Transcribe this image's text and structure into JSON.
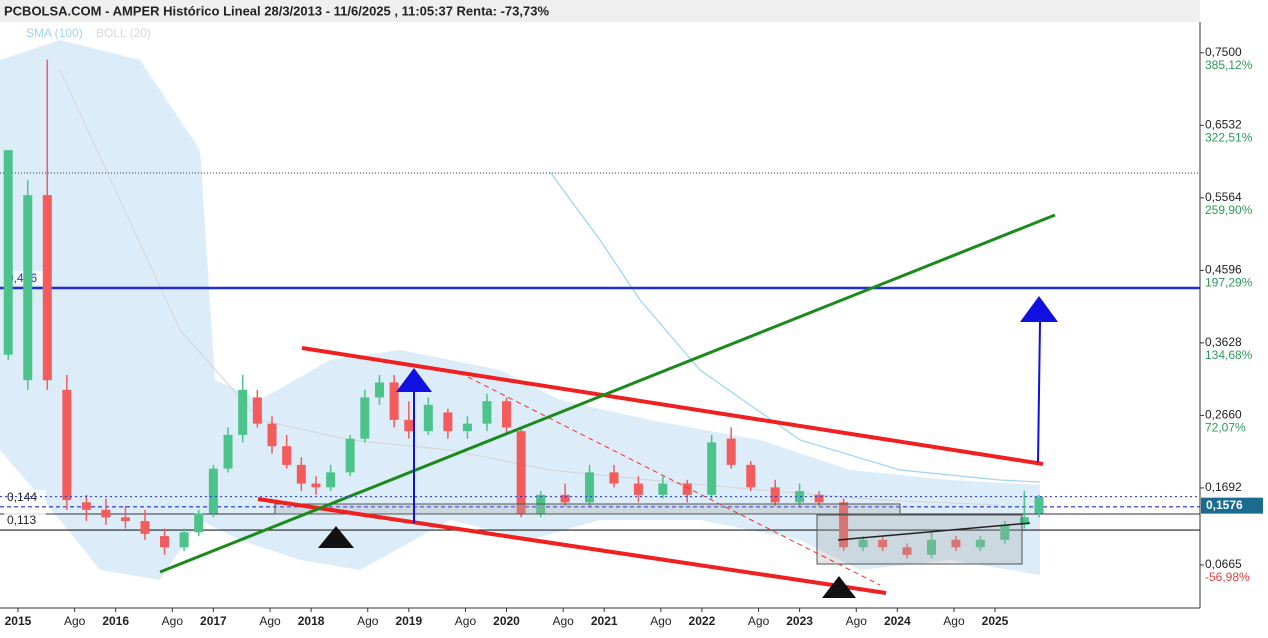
{
  "chart_data": {
    "type": "candlestick",
    "title": "PCBOLSA.COM - AMPER Histórico Lineal 28/3/2013 - 11/6/2025 , 11:05:37 Renta: -73,73%",
    "indicators": [
      {
        "name": "SMA (100)",
        "color": "#9fd3f5"
      },
      {
        "name": "BOLL (20)",
        "color": "#d8d8d8"
      }
    ],
    "xlim": [
      2014.816,
      2027.098
    ],
    "xticks": [
      2015,
      {
        "value": 2015.58,
        "label": "Ago"
      },
      2016,
      {
        "value": 2016.58,
        "label": "Ago"
      },
      2017,
      {
        "value": 2017.58,
        "label": "Ago"
      },
      2018,
      {
        "value": 2018.58,
        "label": "Ago"
      },
      2019,
      {
        "value": 2019.58,
        "label": "Ago"
      },
      2020,
      {
        "value": 2020.58,
        "label": "Ago"
      },
      2021,
      {
        "value": 2021.58,
        "label": "Ago"
      },
      2022,
      {
        "value": 2022.58,
        "label": "Ago"
      },
      2023,
      {
        "value": 2023.58,
        "label": "Ago"
      },
      2024,
      {
        "value": 2024.58,
        "label": "Ago"
      },
      2025
    ],
    "ylim": [
      0.009,
      0.791
    ],
    "yticks": [
      {
        "value": 0.75,
        "label": "0,7500"
      },
      {
        "value": 0.6532,
        "label": "0,6532"
      },
      {
        "value": 0.5564,
        "label": "0,5564"
      },
      {
        "value": 0.4596,
        "label": "0,4596"
      },
      {
        "value": 0.3628,
        "label": "0,3628"
      },
      {
        "value": 0.266,
        "label": "0,2660"
      },
      {
        "value": 0.1692,
        "label": "0,1692"
      },
      {
        "value": 0.0665,
        "label": "0,0665"
      }
    ],
    "y2lim": [
      -94.18,
      411.64
    ],
    "y2ticks": [
      {
        "value": 385.12,
        "label": "385,12%"
      },
      {
        "value": 322.51,
        "label": "322,51%"
      },
      {
        "value": 259.9,
        "label": "259,90%"
      },
      {
        "value": 197.29,
        "label": "197,29%"
      },
      {
        "value": 134.68,
        "label": "134,68%"
      },
      {
        "value": 72.07,
        "label": "72,07%"
      },
      {
        "value": -56.98,
        "label": "-56,98%"
      }
    ],
    "grid": false,
    "up_color": "#4cc38a",
    "down_color": "#f25c5c",
    "levels": [
      {
        "value": 0.436,
        "label": "0,436",
        "color": "#1f2fd6"
      },
      {
        "value": 0.144,
        "label": "0,144",
        "color": "#1f2fd6"
      },
      {
        "value": 0.113,
        "label": "0,113",
        "color": "#222222"
      }
    ],
    "last_price": {
      "value": 0.1576,
      "label": "0,1576"
    },
    "x": [
      2014.9,
      2015.1,
      2015.3,
      2015.5,
      2015.7,
      2015.9,
      2016.1,
      2016.3,
      2016.5,
      2016.7,
      2016.85,
      2017.0,
      2017.15,
      2017.3,
      2017.45,
      2017.6,
      2017.75,
      2017.9,
      2018.05,
      2018.2,
      2018.4,
      2018.55,
      2018.7,
      2018.85,
      2019.0,
      2019.2,
      2019.4,
      2019.6,
      2019.8,
      2020.0,
      2020.15,
      2020.35,
      2020.6,
      2020.85,
      2021.1,
      2021.35,
      2021.6,
      2021.85,
      2022.1,
      2022.3,
      2022.5,
      2022.75,
      2023.0,
      2023.2,
      2023.45,
      2023.65,
      2023.85,
      2024.1,
      2024.35,
      2024.6,
      2024.85,
      2025.1,
      2025.3,
      2025.45
    ],
    "open": [
      0.347,
      0.313,
      0.56,
      0.3,
      0.15,
      0.14,
      0.13,
      0.125,
      0.105,
      0.09,
      0.11,
      0.135,
      0.195,
      0.24,
      0.29,
      0.255,
      0.225,
      0.2,
      0.175,
      0.17,
      0.19,
      0.235,
      0.29,
      0.31,
      0.26,
      0.245,
      0.27,
      0.245,
      0.255,
      0.285,
      0.245,
      0.135,
      0.16,
      0.15,
      0.19,
      0.175,
      0.16,
      0.175,
      0.16,
      0.235,
      0.2,
      0.17,
      0.15,
      0.16,
      0.15,
      0.09,
      0.1,
      0.09,
      0.08,
      0.1,
      0.09,
      0.1,
      0.12,
      0.135
    ],
    "high": [
      0.62,
      0.58,
      0.741,
      0.32,
      0.16,
      0.155,
      0.145,
      0.14,
      0.115,
      0.115,
      0.14,
      0.2,
      0.25,
      0.32,
      0.3,
      0.265,
      0.24,
      0.21,
      0.185,
      0.2,
      0.24,
      0.3,
      0.32,
      0.32,
      0.285,
      0.29,
      0.275,
      0.265,
      0.295,
      0.29,
      0.25,
      0.165,
      0.175,
      0.2,
      0.2,
      0.185,
      0.185,
      0.18,
      0.24,
      0.25,
      0.205,
      0.18,
      0.175,
      0.165,
      0.155,
      0.105,
      0.105,
      0.095,
      0.11,
      0.105,
      0.105,
      0.125,
      0.165,
      0.16
    ],
    "low": [
      0.34,
      0.3,
      0.3,
      0.14,
      0.125,
      0.12,
      0.115,
      0.1,
      0.08,
      0.085,
      0.105,
      0.13,
      0.19,
      0.23,
      0.25,
      0.215,
      0.195,
      0.165,
      0.16,
      0.165,
      0.185,
      0.23,
      0.28,
      0.25,
      0.235,
      0.24,
      0.235,
      0.235,
      0.245,
      0.24,
      0.13,
      0.13,
      0.145,
      0.145,
      0.17,
      0.15,
      0.155,
      0.15,
      0.155,
      0.195,
      0.165,
      0.145,
      0.145,
      0.145,
      0.085,
      0.085,
      0.085,
      0.075,
      0.075,
      0.085,
      0.085,
      0.095,
      0.115,
      0.13
    ],
    "close": [
      0.62,
      0.56,
      0.313,
      0.153,
      0.14,
      0.13,
      0.125,
      0.108,
      0.09,
      0.11,
      0.135,
      0.195,
      0.24,
      0.3,
      0.255,
      0.225,
      0.2,
      0.175,
      0.17,
      0.19,
      0.235,
      0.29,
      0.31,
      0.26,
      0.245,
      0.28,
      0.245,
      0.255,
      0.285,
      0.25,
      0.135,
      0.16,
      0.15,
      0.19,
      0.175,
      0.16,
      0.175,
      0.16,
      0.23,
      0.2,
      0.17,
      0.15,
      0.165,
      0.15,
      0.09,
      0.1,
      0.09,
      0.08,
      0.1,
      0.09,
      0.1,
      0.12,
      0.13,
      0.1576
    ]
  }
}
